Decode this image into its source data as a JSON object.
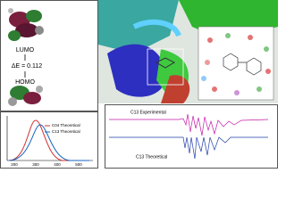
{
  "orbitals": {
    "lumo": "LUMO",
    "gap": "ΔE = 0.112",
    "homo": "HOMO"
  },
  "uv_plot": {
    "legend": [
      "C04 Theoretical",
      "C13 Theoretical"
    ],
    "x_ticks": [
      "200",
      "300",
      "400",
      "500"
    ]
  },
  "ir_plot": {
    "experimental": "C13 Experimental",
    "theoretical": "C13 Theoretical"
  }
}
